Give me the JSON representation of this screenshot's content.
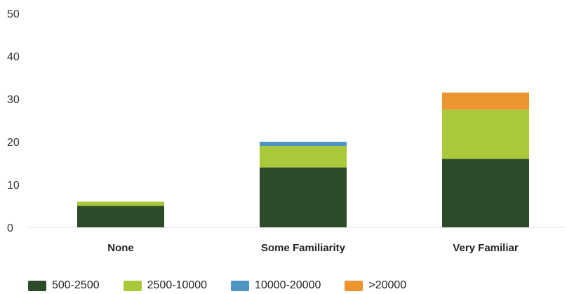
{
  "chart_data": {
    "type": "bar",
    "stacked": true,
    "categories": [
      "None",
      "Some Familiarity",
      "Very Familiar"
    ],
    "series": [
      {
        "name": "500-2500",
        "color": "#2d4a2a",
        "values": [
          5,
          14,
          16
        ]
      },
      {
        "name": "2500-10000",
        "color": "#a9c93a",
        "values": [
          1,
          5,
          11.5
        ]
      },
      {
        "name": "10000-20000",
        "color": "#4f95c2",
        "values": [
          0,
          1,
          0
        ]
      },
      {
        "name": ">20000",
        "color": "#ec9430",
        "values": [
          0,
          0,
          4
        ]
      }
    ],
    "y_ticks": [
      "0",
      "10",
      "20",
      "30",
      "40",
      "50"
    ],
    "ylim": [
      0,
      50
    ],
    "title": "",
    "xlabel": "",
    "ylabel": "",
    "grid": false,
    "legend_position": "bottom-left"
  }
}
